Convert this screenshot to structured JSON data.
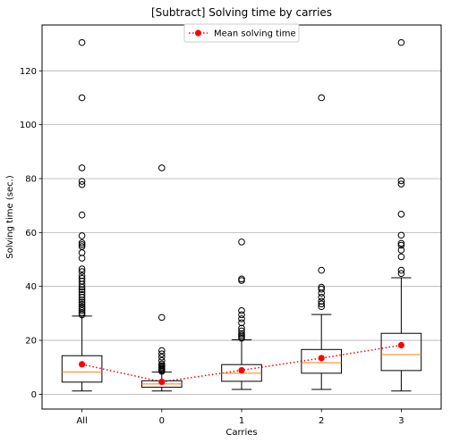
{
  "chart_data": {
    "type": "box",
    "title": "[Subtract] Solving time by carries",
    "xlabel": "Carries",
    "ylabel": "Solving time (sec.)",
    "categories": [
      "All",
      "0",
      "1",
      "2",
      "3"
    ],
    "yticks": [
      0,
      20,
      40,
      60,
      80,
      100,
      120
    ],
    "ylim": [
      -5.5,
      137
    ],
    "grid": "horizontal",
    "legend": {
      "label": "Mean solving time",
      "placement": "top-center"
    },
    "colors": {
      "box": "#000000",
      "median": "#ff7f0e",
      "mean": "#ff0000",
      "grid": "#b0b0b0"
    },
    "boxes": [
      {
        "whisker_low": 1.2,
        "q1": 4.5,
        "median": 8.2,
        "q3": 14.3,
        "whisker_high": 29.0,
        "outliers": [
          29.5,
          30.2,
          31.0,
          31.8,
          32.5,
          33.4,
          34.2,
          35.0,
          36.0,
          37.0,
          38.0,
          38.8,
          39.7,
          40.8,
          42.0,
          43.0,
          44.0,
          45.5,
          46.5,
          50.5,
          52.5,
          54.8,
          55.5,
          56.2,
          58.8,
          66.5,
          77.8,
          79.0,
          84.0,
          110.0,
          130.5
        ]
      },
      {
        "whisker_low": 1.2,
        "q1": 2.6,
        "median": 3.8,
        "q3": 5.0,
        "whisker_high": 8.2,
        "outliers": [
          8.5,
          8.9,
          9.3,
          9.7,
          10.1,
          10.6,
          11.2,
          12.5,
          13.8,
          15.0,
          16.2,
          28.5,
          84.0
        ]
      },
      {
        "whisker_low": 1.8,
        "q1": 4.8,
        "median": 7.8,
        "q3": 11.0,
        "whisker_high": 20.2,
        "outliers": [
          20.8,
          21.3,
          21.9,
          22.5,
          23.5,
          24.5,
          26.5,
          28.0,
          29.5,
          31.0,
          42.2,
          42.8,
          56.5
        ]
      },
      {
        "whisker_low": 1.8,
        "q1": 7.8,
        "median": 11.7,
        "q3": 16.6,
        "whisker_high": 29.6,
        "outliers": [
          32.5,
          33.5,
          34.5,
          36.0,
          37.5,
          39.0,
          39.7,
          46.0,
          110.0
        ]
      },
      {
        "whisker_low": 1.2,
        "q1": 8.8,
        "median": 14.7,
        "q3": 22.6,
        "whisker_high": 43.2,
        "outliers": [
          44.8,
          46.0,
          51.0,
          53.5,
          55.3,
          56.0,
          59.0,
          66.8,
          78.0,
          79.2,
          130.5
        ]
      }
    ],
    "means": [
      11.1,
      4.6,
      8.9,
      13.4,
      18.2
    ]
  }
}
